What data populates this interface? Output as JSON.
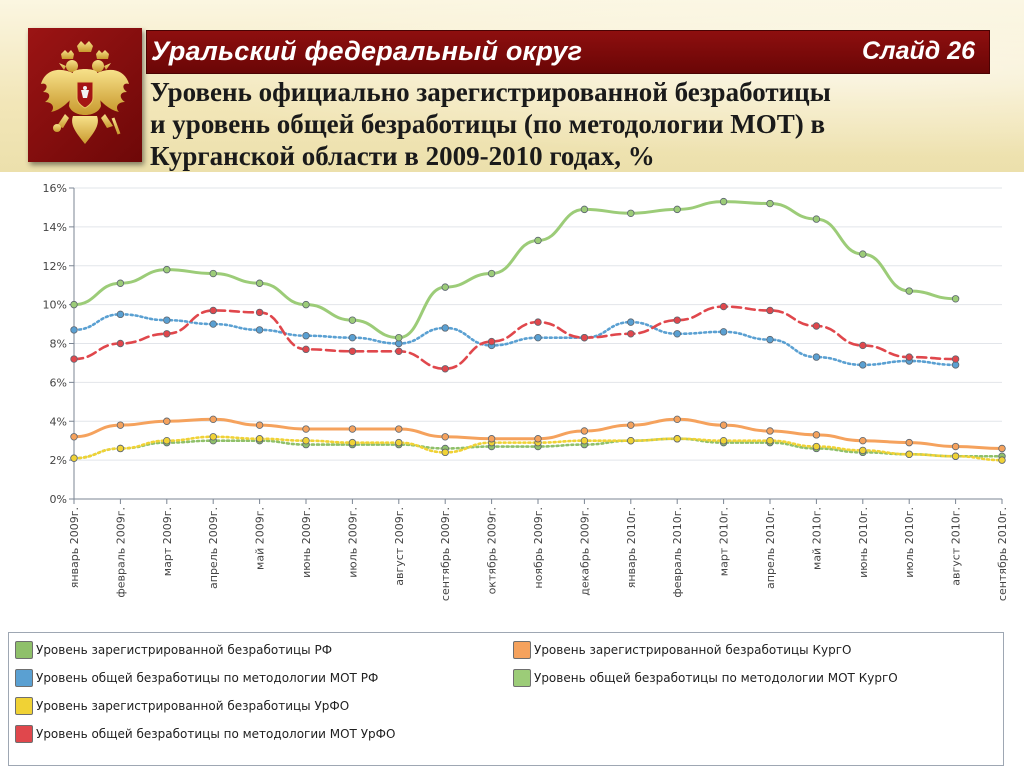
{
  "header": {
    "banner_title": "Уральский федеральный округ",
    "slide_label": "Слайд 26",
    "heading_lines": [
      "Уровень официально зарегистрированной безработицы",
      "и уровень общей безработицы (по методологии МОТ) в",
      "Курганской области в 2009-2010 годах, %"
    ],
    "emblem_icon": "russian-coat-of-arms-icon"
  },
  "colors": {
    "banner": "#7d0b0b",
    "top_background": "#f3e8bb"
  },
  "chart_data": {
    "type": "line",
    "categories": [
      "январь 2009г.",
      "февраль 2009г.",
      "март 2009г.",
      "апрель 2009г.",
      "май 2009г.",
      "июнь 2009г.",
      "июль 2009г.",
      "август 2009г.",
      "сентябрь 2009г.",
      "октябрь 2009г.",
      "ноябрь 2009г.",
      "декабрь 2009г.",
      "январь 2010г.",
      "февраль 2010г.",
      "март 2010г.",
      "апрель 2010г.",
      "май 2010г.",
      "июнь 2010г.",
      "июль 2010г.",
      "август 2010г.",
      "сентябрь 2010г."
    ],
    "y_ticks": [
      "0%",
      "2%",
      "4%",
      "6%",
      "8%",
      "10%",
      "12%",
      "14%",
      "16%"
    ],
    "ylim": [
      0,
      16
    ],
    "grid": true,
    "legend_position": "bottom",
    "series": [
      {
        "name": "Уровень зарегистрированной безработицы РФ",
        "color": "#8fc06a",
        "dash": "dotted",
        "values": [
          2.1,
          2.6,
          2.9,
          3.0,
          3.0,
          2.8,
          2.8,
          2.8,
          2.6,
          2.7,
          2.7,
          2.8,
          3.0,
          3.1,
          2.9,
          2.9,
          2.6,
          2.4,
          2.3,
          2.2,
          2.2
        ]
      },
      {
        "name": "Уровень общей безработицы по методологии МОТ РФ",
        "color": "#5aa0d2",
        "dash": "dotted",
        "values": [
          8.7,
          9.5,
          9.2,
          9.0,
          8.7,
          8.4,
          8.3,
          8.0,
          8.8,
          7.9,
          8.3,
          8.3,
          9.1,
          8.5,
          8.6,
          8.2,
          7.3,
          6.9,
          7.1,
          6.9,
          null
        ]
      },
      {
        "name": "Уровень зарегистрированной безработицы УрФО",
        "color": "#f0d235",
        "dash": "dotted",
        "values": [
          2.1,
          2.6,
          3.0,
          3.2,
          3.1,
          3.0,
          2.9,
          2.9,
          2.4,
          2.9,
          2.9,
          3.0,
          3.0,
          3.1,
          3.0,
          3.0,
          2.7,
          2.5,
          2.3,
          2.2,
          2.0
        ]
      },
      {
        "name": "Уровень общей безработицы по методологии МОТ УрФО",
        "color": "#e0474c",
        "dash": "dashed",
        "values": [
          7.2,
          8.0,
          8.5,
          9.7,
          9.6,
          7.7,
          7.6,
          7.6,
          6.7,
          8.1,
          9.1,
          8.3,
          8.5,
          9.2,
          9.9,
          9.7,
          8.9,
          7.9,
          7.3,
          7.2,
          null
        ]
      },
      {
        "name": "Уровень зарегистрированной безработицы  КургО",
        "color": "#f5a25d",
        "dash": "solid",
        "values": [
          3.2,
          3.8,
          4.0,
          4.1,
          3.8,
          3.6,
          3.6,
          3.6,
          3.2,
          3.1,
          3.1,
          3.5,
          3.8,
          4.1,
          3.8,
          3.5,
          3.3,
          3.0,
          2.9,
          2.7,
          2.6
        ]
      },
      {
        "name": "Уровень общей безработицы по методологии МОТ  КургО",
        "color": "#9ccc78",
        "dash": "solid",
        "values": [
          10.0,
          11.1,
          11.8,
          11.6,
          11.1,
          10.0,
          9.2,
          8.3,
          10.9,
          11.6,
          13.3,
          14.9,
          14.7,
          14.9,
          15.3,
          15.2,
          14.4,
          12.6,
          10.7,
          10.3,
          null
        ]
      }
    ]
  }
}
